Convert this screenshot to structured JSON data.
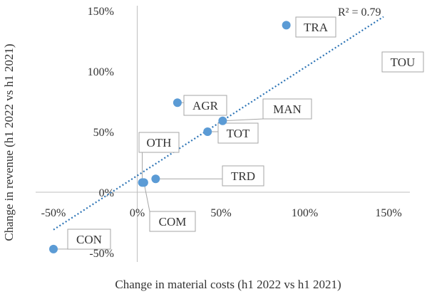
{
  "chart_data": {
    "type": "scatter",
    "xlabel": "Change in material costs (h1 2022 vs h1 2021)",
    "ylabel": "Change  in revenue (h1 2022 vs h1 2021)",
    "xlim": [
      -50,
      150
    ],
    "ylim": [
      -50,
      150
    ],
    "x_ticks": [
      "-50%",
      "0%",
      "50%",
      "100%",
      "150%"
    ],
    "y_ticks": [
      "-50%",
      "0%",
      "50%",
      "100%",
      "150%"
    ],
    "points": [
      {
        "label": "TRA",
        "x": 89,
        "y": 138
      },
      {
        "label": "TOU",
        "x": 150,
        "y": 110
      },
      {
        "label": "AGR",
        "x": 24,
        "y": 74
      },
      {
        "label": "MAN",
        "x": 51,
        "y": 59
      },
      {
        "label": "TOT",
        "x": 42,
        "y": 50
      },
      {
        "label": "OTH",
        "x": 3,
        "y": 8
      },
      {
        "label": "TRD",
        "x": 11,
        "y": 11
      },
      {
        "label": "COM",
        "x": 4,
        "y": 8
      },
      {
        "label": "CON",
        "x": -50,
        "y": -47
      }
    ],
    "trendline": {
      "style": "dotted",
      "r_squared_label": "R² = 0.79",
      "from": [
        -50,
        -31
      ],
      "to": [
        147,
        145
      ]
    },
    "grid": false,
    "colors": {
      "points": "#5b9bd5",
      "trendline": "#2e75b6"
    }
  }
}
